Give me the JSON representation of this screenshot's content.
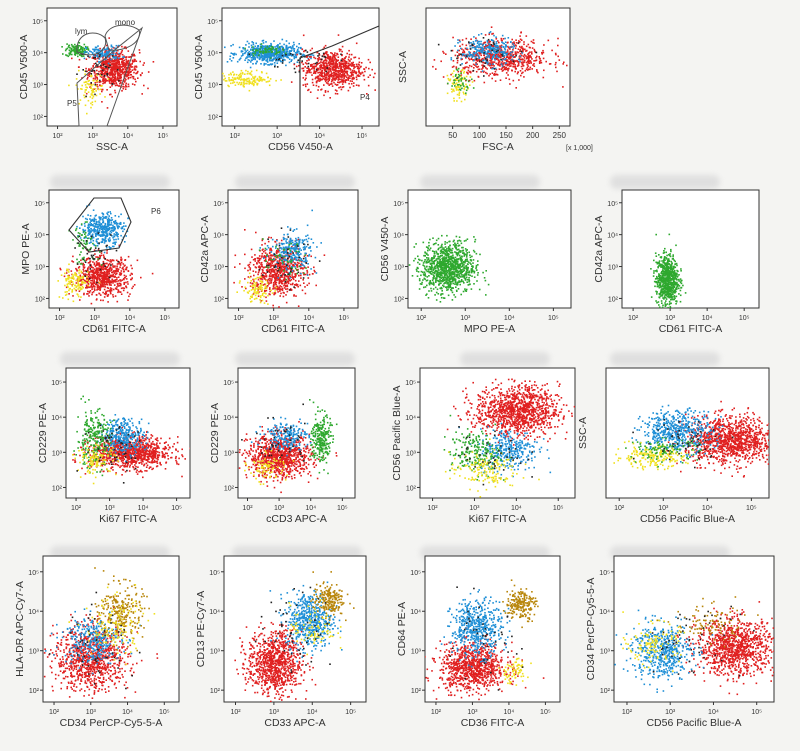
{
  "figure": {
    "note_text": "[x 1,000]"
  },
  "colors": {
    "red": "#e02020",
    "blue": "#1f8fd6",
    "green": "#2ea82e",
    "yellow": "#f0e020",
    "brown": "#b8860b",
    "black": "#222222"
  },
  "chart_data": [
    {
      "id": "p1",
      "type": "scatter",
      "xlabel": "SSC-A",
      "ylabel": "CD45 V500-A",
      "xscale": "log",
      "yscale": "log",
      "xticks": [
        "10^2",
        "10^3",
        "10^4",
        "10^5"
      ],
      "yticks": [
        "10^2",
        "10^3",
        "10^4",
        "10^5"
      ],
      "gates": [
        {
          "label": "lym"
        },
        {
          "label": "mono"
        },
        {
          "label": "P5"
        }
      ],
      "clusters": [
        {
          "color": "red",
          "cx": 3.6,
          "cy": 3.5,
          "sx": 0.35,
          "sy": 0.3,
          "n": 700
        },
        {
          "color": "green",
          "cx": 2.5,
          "cy": 4.1,
          "sx": 0.15,
          "sy": 0.1,
          "n": 120
        },
        {
          "color": "blue",
          "cx": 3.3,
          "cy": 4.0,
          "sx": 0.25,
          "sy": 0.12,
          "n": 120
        },
        {
          "color": "yellow",
          "cx": 2.9,
          "cy": 2.9,
          "sx": 0.2,
          "sy": 0.25,
          "n": 80
        },
        {
          "color": "black",
          "cx": 3.2,
          "cy": 3.5,
          "sx": 0.3,
          "sy": 0.3,
          "n": 40
        }
      ]
    },
    {
      "id": "p2",
      "type": "scatter",
      "xlabel": "CD56 V450-A",
      "ylabel": "CD45 V500-A",
      "xscale": "log",
      "yscale": "log",
      "xticks": [
        "10^2",
        "10^3",
        "10^4",
        "10^5"
      ],
      "yticks": [
        "10^2",
        "10^3",
        "10^4",
        "10^5"
      ],
      "gates": [
        {
          "label": "P4"
        }
      ],
      "clusters": [
        {
          "color": "blue",
          "cx": 2.8,
          "cy": 4.0,
          "sx": 0.35,
          "sy": 0.15,
          "n": 600
        },
        {
          "color": "red",
          "cx": 4.3,
          "cy": 3.5,
          "sx": 0.35,
          "sy": 0.3,
          "n": 700
        },
        {
          "color": "yellow",
          "cx": 2.3,
          "cy": 3.2,
          "sx": 0.3,
          "sy": 0.12,
          "n": 150
        },
        {
          "color": "green",
          "cx": 2.7,
          "cy": 4.1,
          "sx": 0.2,
          "sy": 0.08,
          "n": 60
        },
        {
          "color": "black",
          "cx": 3.5,
          "cy": 3.8,
          "sx": 0.4,
          "sy": 0.2,
          "n": 40
        }
      ]
    },
    {
      "id": "p3",
      "type": "scatter",
      "xlabel": "FSC-A",
      "ylabel": "SSC-A",
      "xscale": "linear",
      "yscale": "linear",
      "note": true,
      "xticks": [
        "50",
        "100",
        "150",
        "200",
        "250"
      ],
      "yticks": [],
      "clusters": [
        {
          "color": "red",
          "cx": 140,
          "cy": 0.58,
          "sx": 45,
          "sy": 0.08,
          "n": 700
        },
        {
          "color": "blue",
          "cx": 115,
          "cy": 0.64,
          "sx": 25,
          "sy": 0.06,
          "n": 250
        },
        {
          "color": "yellow",
          "cx": 60,
          "cy": 0.35,
          "sx": 10,
          "sy": 0.06,
          "n": 80
        },
        {
          "color": "green",
          "cx": 65,
          "cy": 0.4,
          "sx": 10,
          "sy": 0.05,
          "n": 40
        },
        {
          "color": "black",
          "cx": 110,
          "cy": 0.6,
          "sx": 40,
          "sy": 0.08,
          "n": 40
        }
      ]
    },
    {
      "id": "p5",
      "type": "scatter",
      "xlabel": "CD61 FITC-A",
      "ylabel": "MPO PE-A",
      "xscale": "log",
      "yscale": "log",
      "xticks": [
        "10^2",
        "10^3",
        "10^4",
        "10^5"
      ],
      "yticks": [
        "10^2",
        "10^3",
        "10^4",
        "10^5"
      ],
      "gates": [
        {
          "label": "P6"
        }
      ],
      "clusters": [
        {
          "color": "blue",
          "cx": 3.2,
          "cy": 4.2,
          "sx": 0.3,
          "sy": 0.25,
          "n": 400
        },
        {
          "color": "red",
          "cx": 3.2,
          "cy": 2.7,
          "sx": 0.4,
          "sy": 0.3,
          "n": 700
        },
        {
          "color": "yellow",
          "cx": 2.4,
          "cy": 2.5,
          "sx": 0.2,
          "sy": 0.25,
          "n": 120
        },
        {
          "color": "green",
          "cx": 2.7,
          "cy": 3.7,
          "sx": 0.2,
          "sy": 0.3,
          "n": 60
        },
        {
          "color": "black",
          "cx": 3.0,
          "cy": 3.4,
          "sx": 0.3,
          "sy": 0.4,
          "n": 40
        }
      ]
    },
    {
      "id": "p6",
      "type": "scatter",
      "xlabel": "CD61 FITC-A",
      "ylabel": "CD42a APC-A",
      "xscale": "log",
      "yscale": "log",
      "xticks": [
        "10^2",
        "10^3",
        "10^4",
        "10^5"
      ],
      "yticks": [
        "10^2",
        "10^3",
        "10^4",
        "10^5"
      ],
      "clusters": [
        {
          "color": "red",
          "cx": 3.1,
          "cy": 2.9,
          "sx": 0.4,
          "sy": 0.4,
          "n": 700
        },
        {
          "color": "blue",
          "cx": 3.5,
          "cy": 3.5,
          "sx": 0.3,
          "sy": 0.3,
          "n": 250
        },
        {
          "color": "yellow",
          "cx": 2.5,
          "cy": 2.3,
          "sx": 0.2,
          "sy": 0.2,
          "n": 100
        },
        {
          "color": "green",
          "cx": 3.3,
          "cy": 3.2,
          "sx": 0.3,
          "sy": 0.3,
          "n": 50
        },
        {
          "color": "black",
          "cx": 3.3,
          "cy": 3.2,
          "sx": 0.4,
          "sy": 0.4,
          "n": 40
        }
      ]
    },
    {
      "id": "p7",
      "type": "scatter",
      "xlabel": "MPO PE-A",
      "ylabel": "CD56 V450-A",
      "xscale": "log",
      "yscale": "log",
      "xticks": [
        "10^2",
        "10^3",
        "10^4",
        "10^5"
      ],
      "yticks": [
        "10^2",
        "10^3",
        "10^4",
        "10^5"
      ],
      "clusters": [
        {
          "color": "green",
          "cx": 2.6,
          "cy": 3.0,
          "sx": 0.3,
          "sy": 0.4,
          "n": 1000
        }
      ]
    },
    {
      "id": "p8",
      "type": "scatter",
      "xlabel": "CD61 FITC-A",
      "ylabel": "CD42a APC-A",
      "xscale": "log",
      "yscale": "log",
      "xticks": [
        "10^2",
        "10^3",
        "10^4",
        "10^5"
      ],
      "yticks": [
        "10^2",
        "10^3",
        "10^4",
        "10^5"
      ],
      "clusters": [
        {
          "color": "green",
          "cx": 2.9,
          "cy": 2.6,
          "sx": 0.15,
          "sy": 0.4,
          "n": 700
        }
      ]
    },
    {
      "id": "p9",
      "type": "scatter",
      "xlabel": "Ki67 FITC-A",
      "ylabel": "CD229 PE-A",
      "xscale": "log",
      "yscale": "log",
      "xticks": [
        "10^2",
        "10^3",
        "10^4",
        "10^5"
      ],
      "yticks": [
        "10^2",
        "10^3",
        "10^4",
        "10^5"
      ],
      "clusters": [
        {
          "color": "red",
          "cx": 3.6,
          "cy": 3.0,
          "sx": 0.6,
          "sy": 0.22,
          "n": 1000
        },
        {
          "color": "blue",
          "cx": 3.4,
          "cy": 3.5,
          "sx": 0.3,
          "sy": 0.25,
          "n": 300
        },
        {
          "color": "green",
          "cx": 2.5,
          "cy": 3.4,
          "sx": 0.25,
          "sy": 0.4,
          "n": 250
        },
        {
          "color": "yellow",
          "cx": 2.6,
          "cy": 2.8,
          "sx": 0.3,
          "sy": 0.2,
          "n": 100
        },
        {
          "color": "black",
          "cx": 3.2,
          "cy": 3.2,
          "sx": 0.5,
          "sy": 0.4,
          "n": 50
        }
      ]
    },
    {
      "id": "p10",
      "type": "scatter",
      "xlabel": "cCD3 APC-A",
      "ylabel": "CD229 PE-A",
      "xscale": "log",
      "yscale": "log",
      "xticks": [
        "10^2",
        "10^3",
        "10^4",
        "10^5"
      ],
      "yticks": [
        "10^2",
        "10^3",
        "10^4",
        "10^5"
      ],
      "clusters": [
        {
          "color": "red",
          "cx": 3.0,
          "cy": 2.9,
          "sx": 0.5,
          "sy": 0.3,
          "n": 900
        },
        {
          "color": "blue",
          "cx": 3.2,
          "cy": 3.5,
          "sx": 0.35,
          "sy": 0.2,
          "n": 200
        },
        {
          "color": "green",
          "cx": 4.3,
          "cy": 3.4,
          "sx": 0.15,
          "sy": 0.35,
          "n": 250
        },
        {
          "color": "yellow",
          "cx": 2.6,
          "cy": 2.6,
          "sx": 0.3,
          "sy": 0.2,
          "n": 80
        },
        {
          "color": "black",
          "cx": 3.0,
          "cy": 3.3,
          "sx": 0.5,
          "sy": 0.4,
          "n": 40
        }
      ]
    },
    {
      "id": "p11",
      "type": "scatter",
      "xlabel": "Ki67 FITC-A",
      "ylabel": "CD56 Pacific Blue-A",
      "xscale": "log",
      "yscale": "log",
      "xticks": [
        "10^2",
        "10^3",
        "10^4",
        "10^5"
      ],
      "yticks": [
        "10^2",
        "10^3",
        "10^4",
        "10^5"
      ],
      "clusters": [
        {
          "color": "red",
          "cx": 4.0,
          "cy": 4.2,
          "sx": 0.5,
          "sy": 0.35,
          "n": 1100
        },
        {
          "color": "blue",
          "cx": 3.8,
          "cy": 3.1,
          "sx": 0.35,
          "sy": 0.3,
          "n": 300
        },
        {
          "color": "green",
          "cx": 3.0,
          "cy": 3.0,
          "sx": 0.3,
          "sy": 0.3,
          "n": 200
        },
        {
          "color": "yellow",
          "cx": 3.2,
          "cy": 2.5,
          "sx": 0.4,
          "sy": 0.25,
          "n": 150
        },
        {
          "color": "black",
          "cx": 3.4,
          "cy": 3.0,
          "sx": 0.4,
          "sy": 0.4,
          "n": 40
        }
      ]
    },
    {
      "id": "p12",
      "type": "scatter",
      "xlabel": "CD56 Pacific Blue-A",
      "ylabel": "SSC-A",
      "xscale": "log",
      "yscale": "linear",
      "xticks": [
        "10^2",
        "10^3",
        "10^4",
        "10^5"
      ],
      "yticks": [],
      "clusters": [
        {
          "color": "red",
          "cx": 4.5,
          "cy": 0.45,
          "sx": 0.5,
          "sy": 0.09,
          "n": 1100
        },
        {
          "color": "blue",
          "cx": 3.3,
          "cy": 0.52,
          "sx": 0.4,
          "sy": 0.08,
          "n": 500
        },
        {
          "color": "yellow",
          "cx": 2.7,
          "cy": 0.32,
          "sx": 0.4,
          "sy": 0.04,
          "n": 200
        },
        {
          "color": "green",
          "cx": 3.0,
          "cy": 0.38,
          "sx": 0.4,
          "sy": 0.04,
          "n": 100
        },
        {
          "color": "black",
          "cx": 3.5,
          "cy": 0.45,
          "sx": 0.5,
          "sy": 0.08,
          "n": 50
        }
      ]
    },
    {
      "id": "p13",
      "type": "scatter",
      "xlabel": "CD34 PerCP-Cy5-5-A",
      "ylabel": "HLA-DR APC-Cy7-A",
      "xscale": "log",
      "yscale": "log",
      "xticks": [
        "10^2",
        "10^3",
        "10^4",
        "10^5"
      ],
      "yticks": [
        "10^2",
        "10^3",
        "10^4",
        "10^5"
      ],
      "clusters": [
        {
          "color": "red",
          "cx": 3.0,
          "cy": 2.8,
          "sx": 0.5,
          "sy": 0.4,
          "n": 900
        },
        {
          "color": "blue",
          "cx": 3.0,
          "cy": 3.3,
          "sx": 0.4,
          "sy": 0.3,
          "n": 300
        },
        {
          "color": "brown",
          "cx": 3.8,
          "cy": 4.0,
          "sx": 0.3,
          "sy": 0.35,
          "n": 250
        },
        {
          "color": "yellow",
          "cx": 3.6,
          "cy": 3.6,
          "sx": 0.4,
          "sy": 0.4,
          "n": 120
        },
        {
          "color": "black",
          "cx": 3.2,
          "cy": 3.3,
          "sx": 0.5,
          "sy": 0.5,
          "n": 50
        }
      ]
    },
    {
      "id": "p14",
      "type": "scatter",
      "xlabel": "CD33 APC-A",
      "ylabel": "CD13 PE-Cy7-A",
      "xscale": "log",
      "yscale": "log",
      "xticks": [
        "10^2",
        "10^3",
        "10^4",
        "10^5"
      ],
      "yticks": [
        "10^2",
        "10^3",
        "10^4",
        "10^5"
      ],
      "clusters": [
        {
          "color": "red",
          "cx": 3.0,
          "cy": 2.7,
          "sx": 0.35,
          "sy": 0.4,
          "n": 900
        },
        {
          "color": "blue",
          "cx": 3.9,
          "cy": 3.8,
          "sx": 0.3,
          "sy": 0.35,
          "n": 500
        },
        {
          "color": "brown",
          "cx": 4.4,
          "cy": 4.3,
          "sx": 0.2,
          "sy": 0.2,
          "n": 200
        },
        {
          "color": "yellow",
          "cx": 4.0,
          "cy": 3.6,
          "sx": 0.3,
          "sy": 0.3,
          "n": 80
        },
        {
          "color": "black",
          "cx": 3.6,
          "cy": 3.5,
          "sx": 0.5,
          "sy": 0.5,
          "n": 50
        }
      ]
    },
    {
      "id": "p15",
      "type": "scatter",
      "xlabel": "CD36 FITC-A",
      "ylabel": "CD64 PE-A",
      "xscale": "log",
      "yscale": "log",
      "xticks": [
        "10^2",
        "10^3",
        "10^4",
        "10^5"
      ],
      "yticks": [
        "10^2",
        "10^3",
        "10^4",
        "10^5"
      ],
      "clusters": [
        {
          "color": "red",
          "cx": 3.0,
          "cy": 2.6,
          "sx": 0.45,
          "sy": 0.3,
          "n": 900
        },
        {
          "color": "blue",
          "cx": 3.1,
          "cy": 3.6,
          "sx": 0.35,
          "sy": 0.35,
          "n": 500
        },
        {
          "color": "brown",
          "cx": 4.3,
          "cy": 4.2,
          "sx": 0.2,
          "sy": 0.2,
          "n": 200
        },
        {
          "color": "yellow",
          "cx": 4.1,
          "cy": 2.5,
          "sx": 0.2,
          "sy": 0.15,
          "n": 70
        },
        {
          "color": "black",
          "cx": 3.3,
          "cy": 3.2,
          "sx": 0.5,
          "sy": 0.5,
          "n": 40
        }
      ]
    },
    {
      "id": "p16",
      "type": "scatter",
      "xlabel": "CD56 Pacific Blue-A",
      "ylabel": "CD34 PerCP-Cy5-5-A",
      "xscale": "log",
      "yscale": "log",
      "xticks": [
        "10^2",
        "10^3",
        "10^4",
        "10^5"
      ],
      "yticks": [
        "10^2",
        "10^3",
        "10^4",
        "10^5"
      ],
      "clusters": [
        {
          "color": "red",
          "cx": 4.5,
          "cy": 3.1,
          "sx": 0.45,
          "sy": 0.35,
          "n": 1000
        },
        {
          "color": "blue",
          "cx": 2.8,
          "cy": 3.0,
          "sx": 0.35,
          "sy": 0.35,
          "n": 500
        },
        {
          "color": "yellow",
          "cx": 2.6,
          "cy": 3.2,
          "sx": 0.3,
          "sy": 0.25,
          "n": 120
        },
        {
          "color": "brown",
          "cx": 3.9,
          "cy": 3.7,
          "sx": 0.4,
          "sy": 0.25,
          "n": 100
        },
        {
          "color": "black",
          "cx": 3.5,
          "cy": 3.3,
          "sx": 0.6,
          "sy": 0.5,
          "n": 50
        }
      ]
    }
  ]
}
